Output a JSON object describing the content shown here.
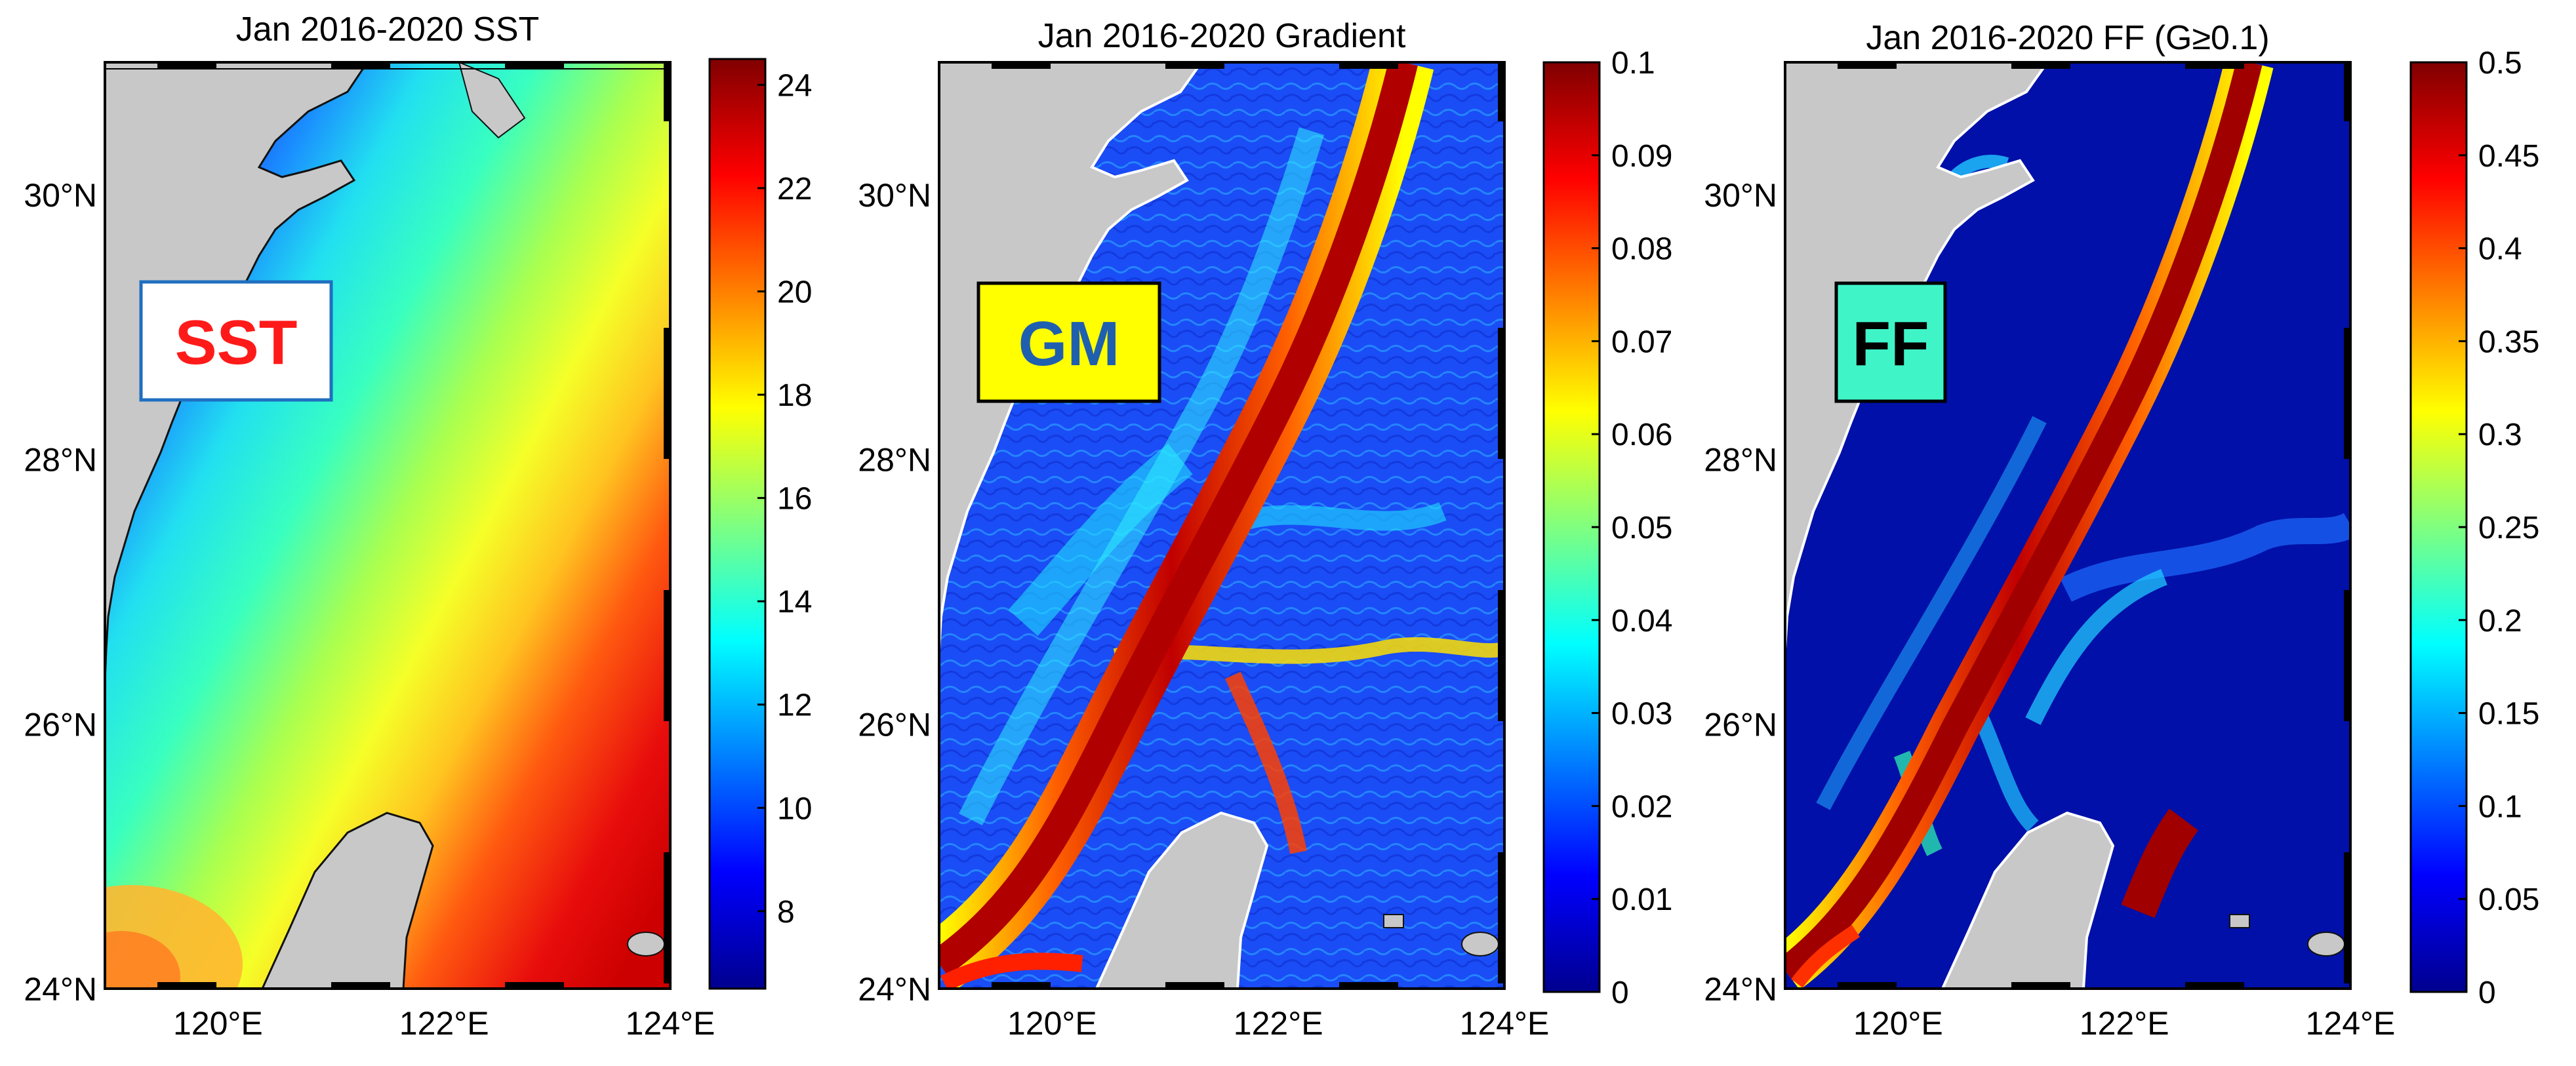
{
  "chart_data": [
    {
      "type": "heatmap",
      "title": "Jan 2016-2020 SST",
      "label_box": "SST",
      "label_color": "#ff1a1a",
      "label_bg": "#ffffff",
      "label_border": "#1f6fc0",
      "x_ticks": [
        "120°E",
        "122°E",
        "124°E"
      ],
      "y_ticks": [
        "24°N",
        "26°N",
        "28°N",
        "30°N"
      ],
      "x_range": [
        119,
        124
      ],
      "y_range": [
        24,
        31
      ],
      "colorbar": {
        "range": [
          6.5,
          24.5
        ],
        "ticks": [
          8,
          10,
          12,
          14,
          16,
          18,
          20,
          22,
          24
        ],
        "tick_labels": [
          "8",
          "10",
          "12",
          "14",
          "16",
          "18",
          "20",
          "22",
          "24"
        ]
      }
    },
    {
      "type": "heatmap",
      "title": "Jan 2016-2020 Gradient",
      "label_box": "GM",
      "label_color": "#1f5fb0",
      "label_bg": "#ffff00",
      "label_border": "#000000",
      "x_ticks": [
        "120°E",
        "122°E",
        "124°E"
      ],
      "y_ticks": [
        "24°N",
        "26°N",
        "28°N",
        "30°N"
      ],
      "x_range": [
        119,
        124
      ],
      "y_range": [
        24,
        31
      ],
      "colorbar": {
        "range": [
          0,
          0.1
        ],
        "ticks": [
          0,
          0.01,
          0.02,
          0.03,
          0.04,
          0.05,
          0.06,
          0.07,
          0.08,
          0.09,
          0.1
        ],
        "tick_labels": [
          "0",
          "0.01",
          "0.02",
          "0.03",
          "0.04",
          "0.05",
          "0.06",
          "0.07",
          "0.08",
          "0.09",
          "0.1"
        ]
      }
    },
    {
      "type": "heatmap",
      "title": "Jan 2016-2020 FF (G≥0.1)",
      "label_box": "FF",
      "label_color": "#000000",
      "label_bg": "#3ff5c8",
      "label_border": "#000000",
      "x_ticks": [
        "120°E",
        "122°E",
        "124°E"
      ],
      "y_ticks": [
        "24°N",
        "26°N",
        "28°N",
        "30°N"
      ],
      "x_range": [
        119,
        124
      ],
      "y_range": [
        24,
        31
      ],
      "colorbar": {
        "range": [
          0,
          0.5
        ],
        "ticks": [
          0,
          0.05,
          0.1,
          0.15,
          0.2,
          0.25,
          0.3,
          0.35,
          0.4,
          0.45,
          0.5
        ],
        "tick_labels": [
          "0",
          "0.05",
          "0.1",
          "0.15",
          "0.2",
          "0.25",
          "0.3",
          "0.35",
          "0.4",
          "0.45",
          "0.5"
        ]
      }
    }
  ],
  "colors": {
    "land": "#c8c8c8",
    "jet_dark_blue": "#00008f",
    "jet_red": "#8f0000"
  }
}
